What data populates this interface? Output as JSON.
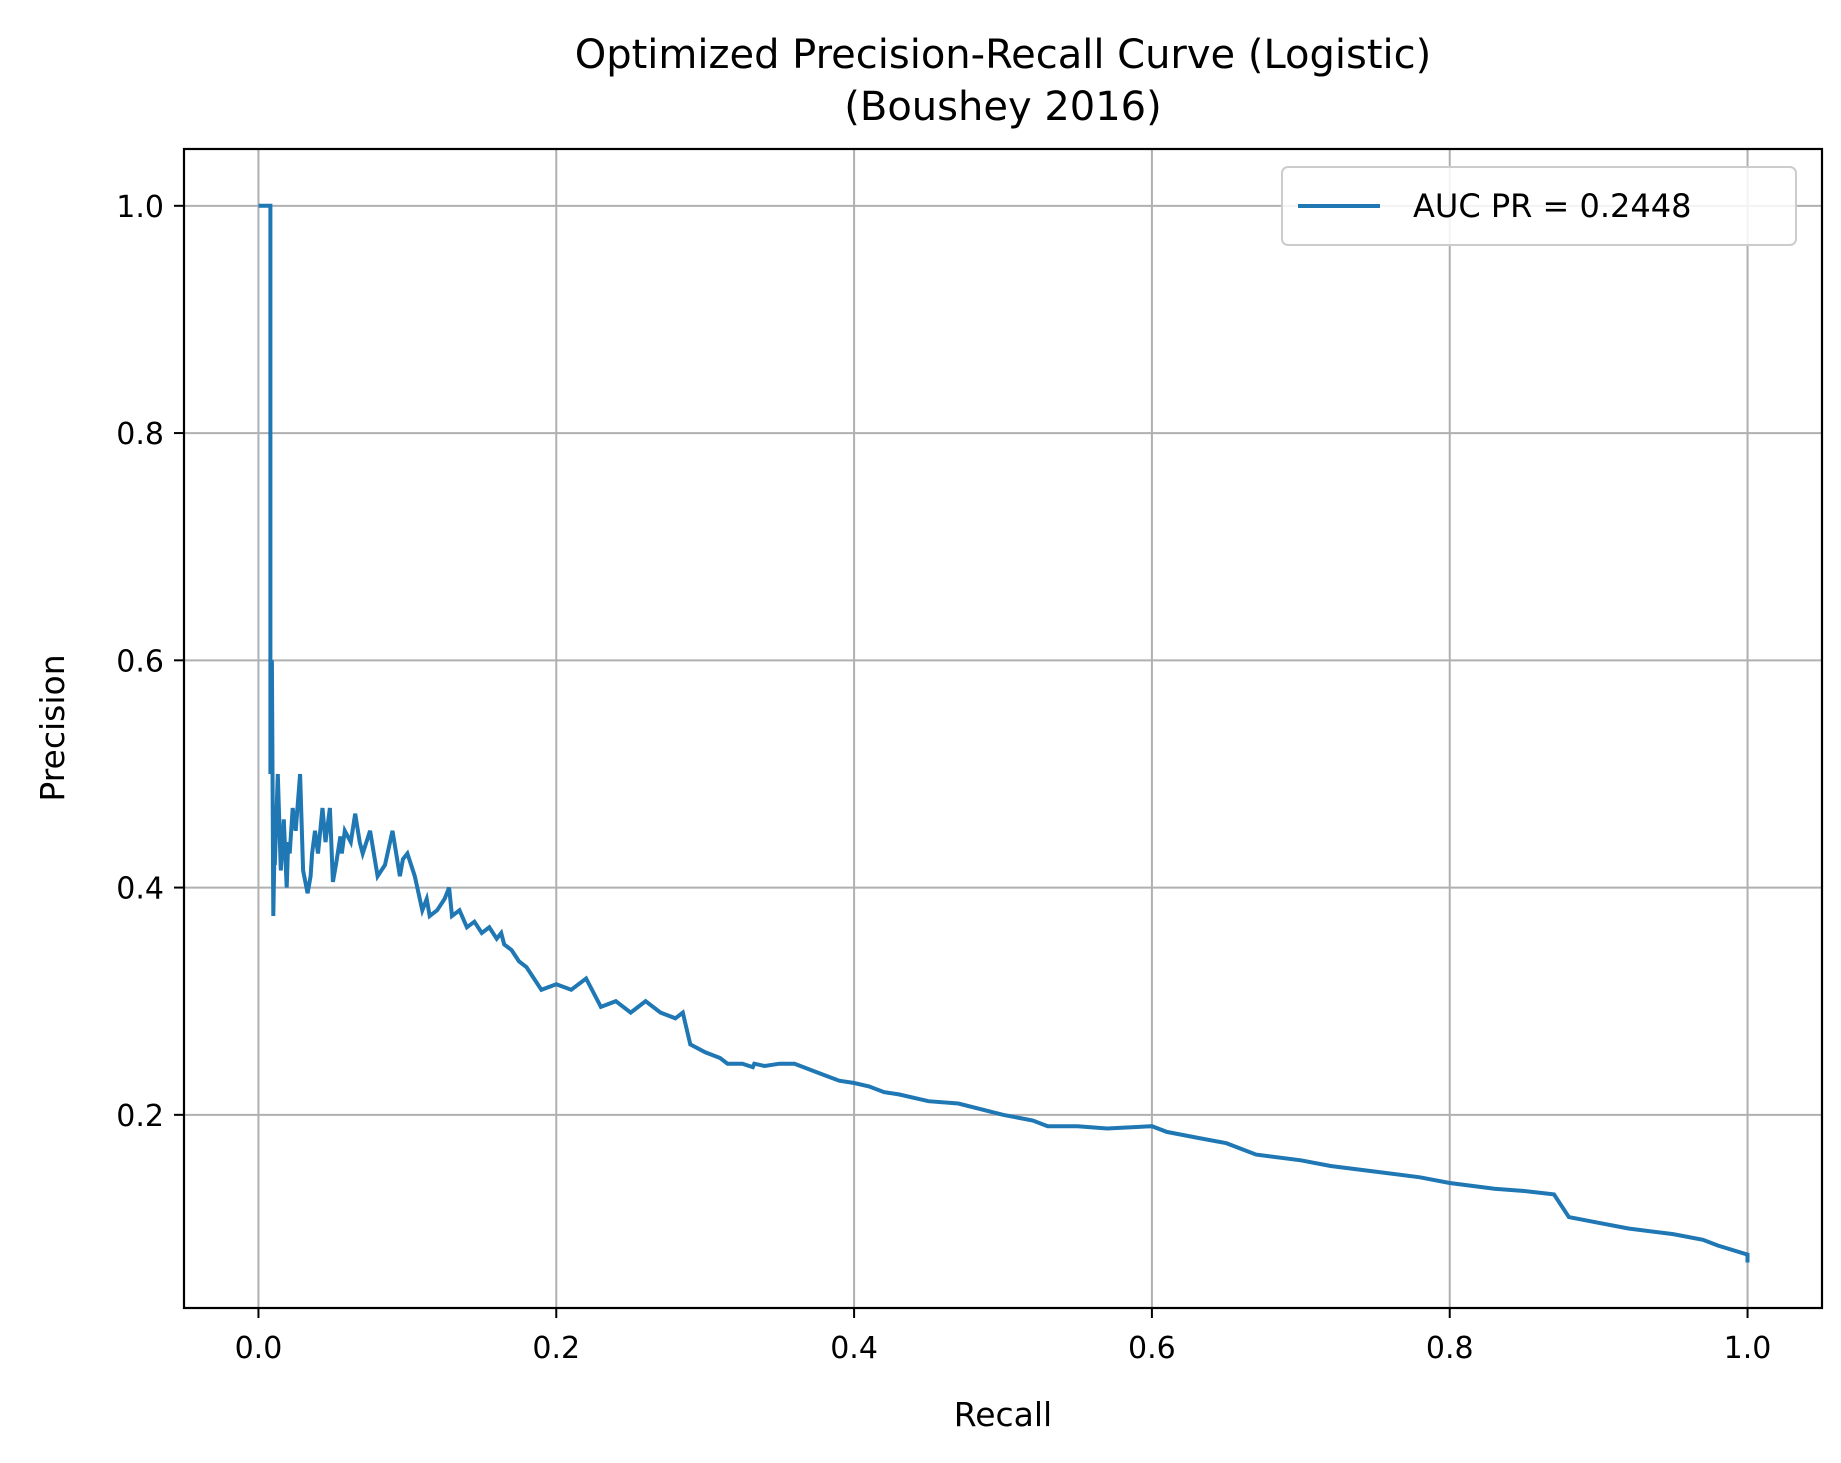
{
  "chart_data": {
    "type": "line",
    "title": "Optimized Precision-Recall Curve (Logistic)",
    "subtitle": "(Boushey 2016)",
    "xlabel": "Recall",
    "ylabel": "Precision",
    "xlim": [
      -0.05,
      1.05
    ],
    "ylim": [
      0.03,
      1.05
    ],
    "xticks": [
      0.0,
      0.2,
      0.4,
      0.6,
      0.8,
      1.0
    ],
    "xtick_labels": [
      "0.0",
      "0.2",
      "0.4",
      "0.6",
      "0.8",
      "1.0"
    ],
    "yticks": [
      0.2,
      0.4,
      0.6,
      0.8,
      1.0
    ],
    "ytick_labels": [
      "0.2",
      "0.4",
      "0.6",
      "0.8",
      "1.0"
    ],
    "grid": true,
    "legend": "top-right",
    "series": [
      {
        "name": "AUC PR = 0.2448",
        "color": "#1f77b4",
        "x": [
          0.0,
          0.008,
          0.008,
          0.009,
          0.01,
          0.011,
          0.011,
          0.013,
          0.015,
          0.017,
          0.019,
          0.02,
          0.021,
          0.023,
          0.025,
          0.028,
          0.03,
          0.033,
          0.035,
          0.036,
          0.038,
          0.04,
          0.043,
          0.045,
          0.048,
          0.05,
          0.052,
          0.055,
          0.056,
          0.058,
          0.062,
          0.065,
          0.068,
          0.07,
          0.075,
          0.08,
          0.085,
          0.09,
          0.095,
          0.097,
          0.1,
          0.105,
          0.11,
          0.113,
          0.115,
          0.12,
          0.125,
          0.128,
          0.13,
          0.135,
          0.14,
          0.145,
          0.15,
          0.155,
          0.16,
          0.163,
          0.165,
          0.17,
          0.175,
          0.18,
          0.19,
          0.2,
          0.21,
          0.22,
          0.23,
          0.24,
          0.25,
          0.26,
          0.27,
          0.28,
          0.285,
          0.29,
          0.3,
          0.31,
          0.315,
          0.325,
          0.332,
          0.333,
          0.34,
          0.35,
          0.36,
          0.38,
          0.39,
          0.4,
          0.41,
          0.42,
          0.43,
          0.45,
          0.47,
          0.5,
          0.52,
          0.53,
          0.55,
          0.57,
          0.6,
          0.61,
          0.63,
          0.65,
          0.67,
          0.7,
          0.72,
          0.75,
          0.78,
          0.8,
          0.83,
          0.85,
          0.87,
          0.875,
          0.88,
          0.9,
          0.92,
          0.95,
          0.97,
          0.98,
          1.0,
          1.0
        ],
        "y": [
          1.0,
          1.0,
          0.5,
          0.6,
          0.375,
          0.45,
          0.42,
          0.5,
          0.415,
          0.46,
          0.4,
          0.44,
          0.43,
          0.47,
          0.45,
          0.5,
          0.415,
          0.395,
          0.41,
          0.43,
          0.45,
          0.43,
          0.47,
          0.44,
          0.47,
          0.405,
          0.42,
          0.445,
          0.43,
          0.45,
          0.44,
          0.465,
          0.44,
          0.43,
          0.45,
          0.41,
          0.42,
          0.45,
          0.41,
          0.425,
          0.43,
          0.41,
          0.38,
          0.39,
          0.375,
          0.38,
          0.39,
          0.4,
          0.375,
          0.38,
          0.365,
          0.37,
          0.36,
          0.365,
          0.355,
          0.36,
          0.35,
          0.345,
          0.335,
          0.33,
          0.31,
          0.315,
          0.31,
          0.32,
          0.295,
          0.3,
          0.29,
          0.3,
          0.29,
          0.285,
          0.29,
          0.262,
          0.255,
          0.25,
          0.245,
          0.245,
          0.242,
          0.245,
          0.243,
          0.245,
          0.245,
          0.235,
          0.23,
          0.228,
          0.225,
          0.22,
          0.218,
          0.212,
          0.21,
          0.2,
          0.195,
          0.19,
          0.19,
          0.188,
          0.19,
          0.185,
          0.18,
          0.175,
          0.165,
          0.16,
          0.155,
          0.15,
          0.145,
          0.14,
          0.135,
          0.133,
          0.13,
          0.12,
          0.11,
          0.105,
          0.1,
          0.095,
          0.09,
          0.085,
          0.077,
          0.07
        ]
      }
    ]
  }
}
